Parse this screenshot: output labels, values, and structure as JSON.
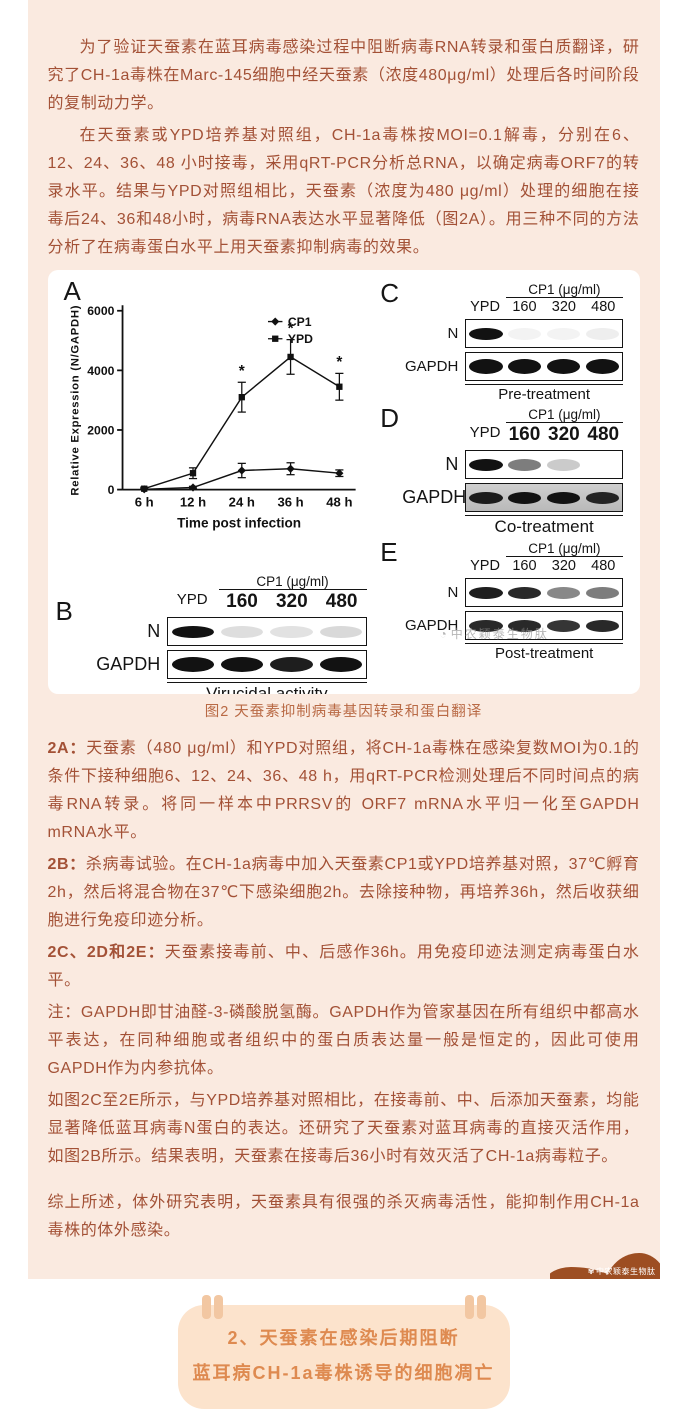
{
  "page": {
    "background": "#FFFFFF",
    "content_background": "#FAEAE0",
    "text_color": "#A35136",
    "accent_orange": "#DE8A50",
    "wave_brown": "#9D4E22",
    "footer_box_background": "#FCE3CC",
    "quote_mark_color": "#F2C7A2"
  },
  "intro_paragraphs": [
    {
      "text": "为了验证天蚕素在蓝耳病毒感染过程中阻断病毒RNA转录和蛋白质翻译，研究了CH-1a毒株在Marc-145细胞中经天蚕素（浓度480μg/ml）处理后各时间阶段的复制动力学。"
    },
    {
      "text": "在天蚕素或YPD培养基对照组，CH-1a毒株按MOI=0.1解毒，分别在6、12、24、36、48 小时接毒，采用qRT-PCR分析总RNA，以确定病毒ORF7的转录水平。结果与YPD对照组相比，天蚕素（浓度为480 μg/ml）处理的细胞在接毒后24、36和48小时，病毒RNA表达水平显著降低（图2A）。用三种不同的方法分析了在病毒蛋白水平上用天蚕素抑制病毒的效果。"
    }
  ],
  "figure": {
    "caption": "图2 天蚕素抑制病毒基因转录和蛋白翻译"
  },
  "chart_data": {
    "type": "line",
    "panel_label": "A",
    "x_categories": [
      "6 h",
      "12 h",
      "24 h",
      "36 h",
      "48 h"
    ],
    "series": [
      {
        "name": "CP1",
        "marker": "diamond",
        "values": [
          10,
          70,
          640,
          700,
          550
        ],
        "errors": [
          20,
          40,
          240,
          200,
          110
        ],
        "significant": [
          false,
          false,
          false,
          false,
          false
        ]
      },
      {
        "name": "YPD",
        "marker": "square",
        "values": [
          30,
          550,
          3100,
          4450,
          3450
        ],
        "errors": [
          50,
          180,
          500,
          580,
          450
        ],
        "significant": [
          false,
          false,
          true,
          true,
          true
        ]
      }
    ],
    "ylabel": "Relative Expression (N/GAPDH)",
    "xlabel": "Time post infection",
    "yticks": [
      0,
      2000,
      4000,
      6000
    ],
    "ylim": [
      0,
      6000
    ],
    "legend_position": "top-right",
    "line_color": "#111111"
  },
  "blots": [
    {
      "panel": "B",
      "dose_header": "CP1 (μg/ml)",
      "lanes": [
        "YPD",
        "160",
        "320",
        "480"
      ],
      "rows": [
        {
          "label": "N",
          "thickness": "normal",
          "bands": [
            1,
            0.14,
            0.12,
            0.16
          ]
        },
        {
          "label": "GAPDH",
          "thickness": "thick",
          "bands": [
            1,
            1,
            0.95,
            1
          ]
        }
      ],
      "footer": "Virucidal activity",
      "large_lanes": true
    },
    {
      "panel": "C",
      "dose_header": "CP1 (μg/ml)",
      "lanes": [
        "YPD",
        "160",
        "320",
        "480"
      ],
      "rows": [
        {
          "label": "N",
          "thickness": "normal",
          "bands": [
            1,
            0.05,
            0.05,
            0.07
          ]
        },
        {
          "label": "GAPDH",
          "thickness": "thick",
          "bands": [
            1,
            1,
            1,
            1
          ]
        }
      ],
      "footer": "Pre-treatment",
      "large_lanes": false
    },
    {
      "panel": "D",
      "dose_header": "CP1 (μg/ml)",
      "lanes": [
        "YPD",
        "160",
        "320",
        "480"
      ],
      "rows": [
        {
          "label": "N",
          "thickness": "normal",
          "bands": [
            1,
            0.55,
            0.22,
            0.02
          ]
        },
        {
          "label": "GAPDH",
          "thickness": "normal",
          "bands": [
            0.95,
            1,
            1,
            0.9
          ],
          "box_bg": "gray"
        }
      ],
      "footer": "Co-treatment",
      "large_lanes": true
    },
    {
      "panel": "E",
      "dose_header": "CP1 (μg/ml)",
      "lanes": [
        "YPD",
        "160",
        "320",
        "480"
      ],
      "rows": [
        {
          "label": "N",
          "thickness": "normal",
          "bands": [
            0.95,
            0.9,
            0.5,
            0.55
          ]
        },
        {
          "label": "GAPDH",
          "thickness": "normal",
          "bands": [
            0.9,
            0.9,
            0.85,
            0.9
          ]
        }
      ],
      "footer": "Post-treatment",
      "large_lanes": false,
      "watermark": "中农颖泰生物肽"
    }
  ],
  "notes": [
    {
      "lead": "2A：",
      "bold_lead": true,
      "text": "天蚕素（480 μg/ml）和YPD对照组，将CH-1a毒株在感染复数MOI为0.1的条件下接种细胞6、12、24、36、48 h，用qRT-PCR检测处理后不同时间点的病毒RNA转录。将同一样本中PRRSV的 ORF7 mRNA水平归一化至GAPDH mRNA水平。"
    },
    {
      "lead": "2B：",
      "bold_lead": true,
      "text": "杀病毒试验。在CH-1a病毒中加入天蚕素CP1或YPD培养基对照，37℃孵育2h，然后将混合物在37℃下感染细胞2h。去除接种物，再培养36h，然后收获细胞进行免疫印迹分析。"
    },
    {
      "lead": "2C、2D和2E：",
      "bold_lead": true,
      "text": "天蚕素接毒前、中、后感作36h。用免疫印迹法测定病毒蛋白水平。"
    },
    {
      "lead": "注：",
      "bold_lead": false,
      "text": "GAPDH即甘油醛-3-磷酸脱氢酶。GAPDH作为管家基因在所有组织中都高水平表达，在同种细胞或者组织中的蛋白质表达量一般是恒定的，因此可使用GAPDH作为内参抗体。"
    },
    {
      "lead": "",
      "bold_lead": false,
      "text": "如图2C至2E所示，与YPD培养基对照相比，在接毒前、中、后添加天蚕素，均能显著降低蓝耳病毒N蛋白的表达。还研究了天蚕素对蓝耳病毒的直接灭活作用，如图2B所示。结果表明，天蚕素在接毒后36小时有效灭活了CH-1a病毒粒子。"
    },
    {
      "lead": "",
      "bold_lead": false,
      "spaced": true,
      "text": "综上所述，体外研究表明，天蚕素具有很强的杀灭病毒活性，能抑制作用CH-1a毒株的体外感染。"
    }
  ],
  "brand": {
    "name": "中农颖泰生物肽"
  },
  "footer_box": {
    "line1": "2、天蚕素在感染后期阻断",
    "line2": "蓝耳病CH-1a毒株诱导的细胞凋亡"
  }
}
